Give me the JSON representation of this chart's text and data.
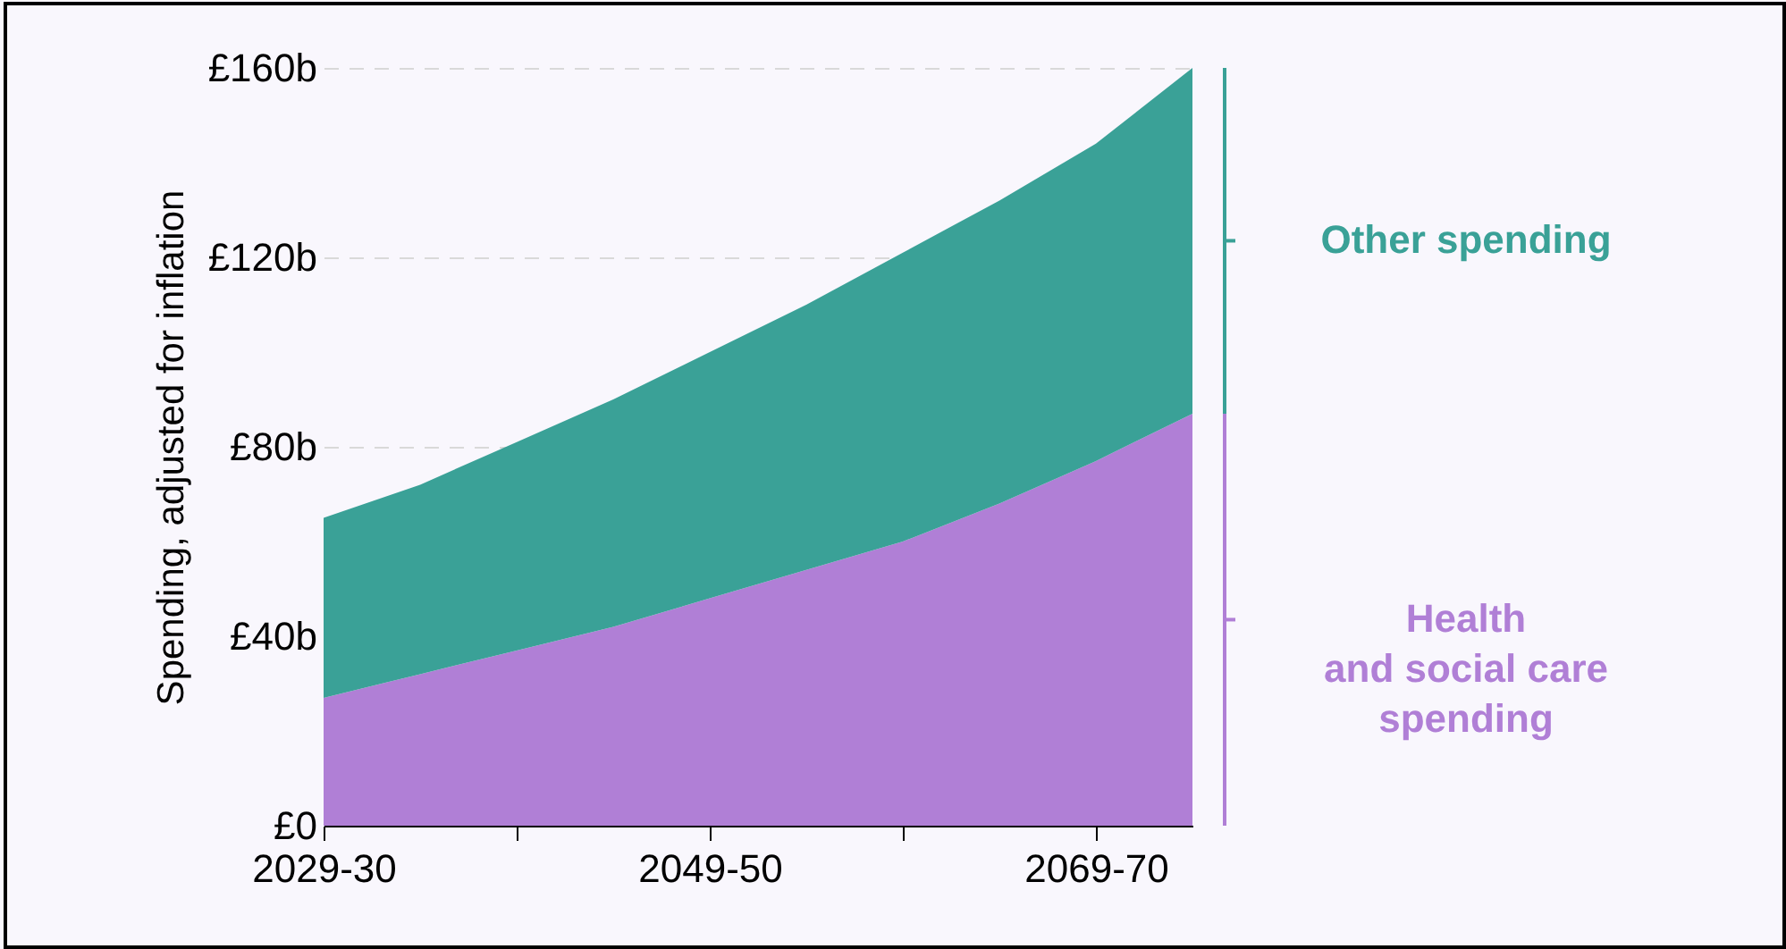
{
  "chart_data": {
    "type": "area",
    "stacked": true,
    "ylabel": "Spending, adjusted for inflation",
    "categories": [
      "2029-30",
      null,
      null,
      null,
      "2049-50",
      null,
      null,
      null,
      "2069-70",
      null
    ],
    "series": [
      {
        "name": "Health\nand social care\nspending",
        "color": "#b07fd6",
        "values": [
          27,
          32,
          37,
          42,
          48,
          54,
          60,
          68,
          77,
          87
        ]
      },
      {
        "name": "Other spending",
        "color": "#3aa197",
        "values": [
          38,
          40,
          44,
          48,
          52,
          56,
          61,
          64,
          67,
          73
        ]
      }
    ],
    "ylim": [
      0,
      160
    ],
    "yticks": [
      {
        "value": 0,
        "label": "£0"
      },
      {
        "value": 40,
        "label": "£40b"
      },
      {
        "value": 80,
        "label": "£80b"
      },
      {
        "value": 120,
        "label": "£120b"
      },
      {
        "value": 160,
        "label": "£160b"
      }
    ],
    "grid": "y",
    "legend": "right"
  }
}
